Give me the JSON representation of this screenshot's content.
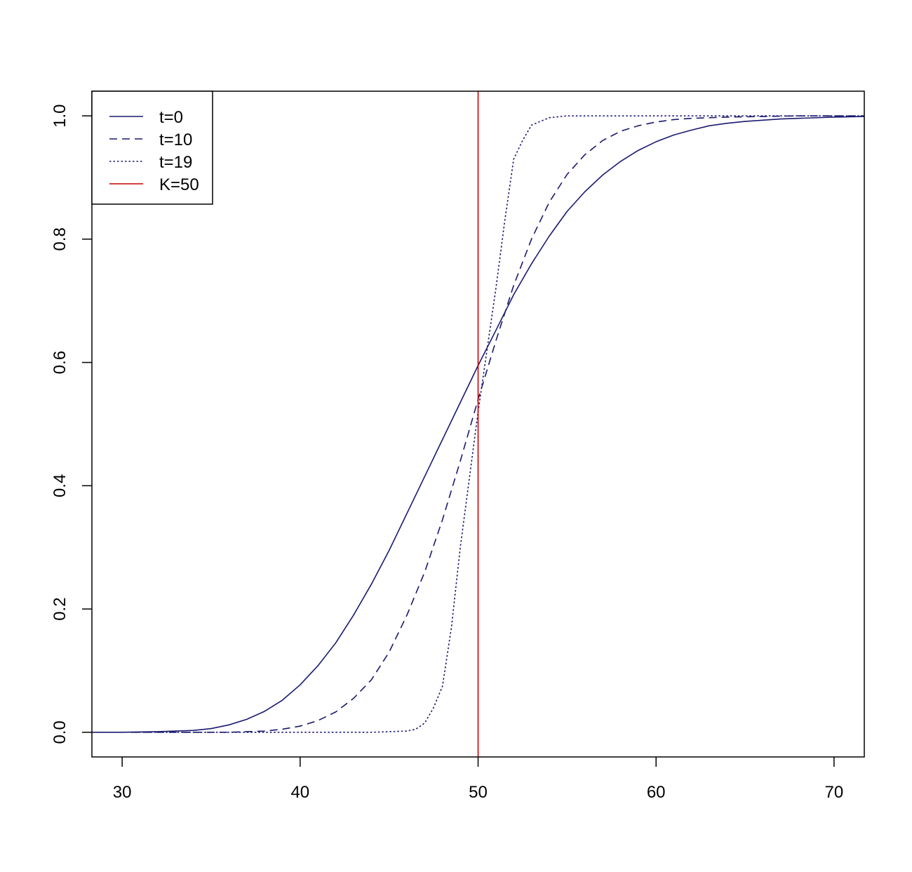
{
  "chart_data": {
    "type": "line",
    "title": "",
    "xlabel": "",
    "ylabel": "",
    "xlim": [
      28.3,
      71.7
    ],
    "ylim": [
      -0.04,
      1.04
    ],
    "x_ticks": [
      30,
      40,
      50,
      60,
      70
    ],
    "x_tick_labels": [
      "30",
      "40",
      "50",
      "60",
      "70"
    ],
    "y_ticks": [
      0.0,
      0.2,
      0.4,
      0.6,
      0.8,
      1.0
    ],
    "y_tick_labels": [
      "0.0",
      "0.2",
      "0.4",
      "0.6",
      "0.8",
      "1.0"
    ],
    "grid": false,
    "legend_position": "top-left",
    "series": [
      {
        "name": "t=0",
        "color": "#191970",
        "dash": "solid",
        "x": [
          28.3,
          30,
          32,
          34,
          35,
          36,
          37,
          38,
          39,
          40,
          41,
          42,
          43,
          44,
          45,
          46,
          47,
          48,
          49,
          50,
          51,
          52,
          53,
          54,
          55,
          56,
          57,
          58,
          59,
          60,
          61,
          62,
          63,
          64,
          65,
          66,
          67,
          68,
          70,
          71.7
        ],
        "y": [
          0.0,
          0.0,
          0.001,
          0.003,
          0.006,
          0.012,
          0.021,
          0.034,
          0.052,
          0.077,
          0.108,
          0.145,
          0.19,
          0.24,
          0.295,
          0.355,
          0.415,
          0.475,
          0.535,
          0.595,
          0.652,
          0.71,
          0.76,
          0.805,
          0.845,
          0.877,
          0.904,
          0.926,
          0.944,
          0.958,
          0.969,
          0.977,
          0.984,
          0.988,
          0.991,
          0.993,
          0.995,
          0.996,
          0.998,
          0.999
        ]
      },
      {
        "name": "t=10",
        "color": "#191970",
        "dash": "dashed",
        "x": [
          30.5,
          32,
          34,
          36,
          38,
          39,
          40,
          41,
          42,
          43,
          44,
          45,
          46,
          47,
          48,
          49,
          50,
          51,
          52,
          53,
          54,
          55,
          56,
          57,
          58,
          59,
          60,
          61,
          62,
          64,
          66,
          68,
          70,
          71.7
        ],
        "y": [
          0.0,
          0.0,
          0.0,
          0.0,
          0.002,
          0.005,
          0.01,
          0.019,
          0.033,
          0.055,
          0.085,
          0.13,
          0.19,
          0.26,
          0.345,
          0.44,
          0.54,
          0.635,
          0.725,
          0.8,
          0.86,
          0.905,
          0.937,
          0.96,
          0.975,
          0.984,
          0.99,
          0.994,
          0.996,
          0.998,
          0.999,
          1.0,
          1.0,
          1.0
        ]
      },
      {
        "name": "t=19",
        "color": "#191970",
        "dash": "dotted",
        "x": [
          30.5,
          35,
          40,
          44,
          45,
          46,
          46.5,
          47,
          47.5,
          48,
          48.5,
          49,
          49.5,
          50,
          50.5,
          51,
          51.5,
          52,
          52.5,
          53,
          54,
          55,
          60,
          65,
          70,
          71.7
        ],
        "y": [
          0.0,
          0.0,
          0.0,
          0.0,
          0.001,
          0.002,
          0.005,
          0.015,
          0.04,
          0.075,
          0.17,
          0.3,
          0.41,
          0.52,
          0.62,
          0.72,
          0.83,
          0.93,
          0.96,
          0.985,
          0.997,
          1.0,
          1.0,
          1.0,
          1.0,
          1.0
        ]
      }
    ],
    "vline": {
      "name": "K=50",
      "x": 50,
      "color": "#cc0000"
    },
    "legend": [
      {
        "label": "t=0",
        "color": "#191970",
        "dash": "solid"
      },
      {
        "label": "t=10",
        "color": "#191970",
        "dash": "dashed"
      },
      {
        "label": "t=19",
        "color": "#191970",
        "dash": "dotted"
      },
      {
        "label": "K=50",
        "color": "#cc0000",
        "dash": "solid"
      }
    ]
  }
}
